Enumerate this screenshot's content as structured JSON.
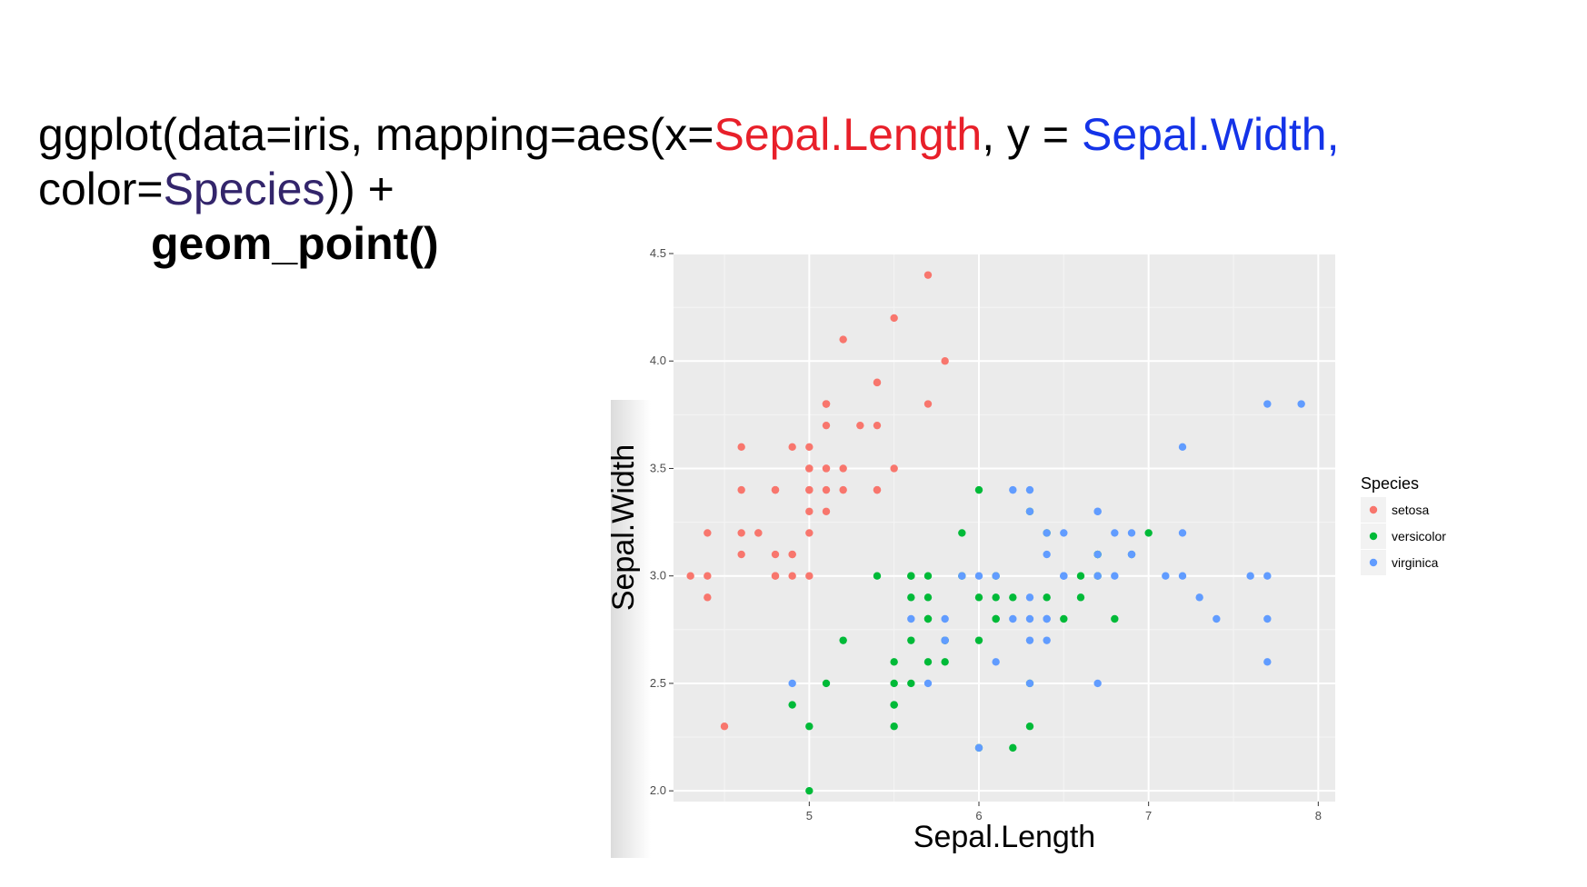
{
  "code": {
    "line1": [
      {
        "text": "ggplot(data=iris, mapping=aes(x=",
        "color": "#000000"
      },
      {
        "text": "Sepal.Length",
        "color": "#e8202a"
      },
      {
        "text": ", y = ",
        "color": "#000000"
      },
      {
        "text": "Sepal.Width,",
        "color": "#1433e8"
      }
    ],
    "line2": [
      {
        "text": "color=",
        "color": "#000000"
      },
      {
        "text": "Species",
        "color": "#33256b"
      },
      {
        "text": ")) +",
        "color": "#000000"
      }
    ],
    "line3": "geom_point()"
  },
  "chart_data": {
    "type": "scatter",
    "xlabel": "Sepal.Length",
    "ylabel": "Sepal.Width",
    "xlim": [
      4.2,
      8.1
    ],
    "ylim": [
      1.95,
      4.5
    ],
    "xticks": [
      5,
      6,
      7,
      8
    ],
    "xtick_labels": [
      "5",
      "6",
      "7",
      "8"
    ],
    "yticks": [
      2.0,
      2.5,
      3.0,
      3.5,
      4.0,
      4.5
    ],
    "ytick_labels": [
      "2.0",
      "2.5",
      "3.0",
      "3.5",
      "4.0",
      "4.5"
    ],
    "grid": true,
    "panel_background": "#ebebeb",
    "legend": {
      "title": "Species",
      "position": "right"
    },
    "series": [
      {
        "name": "setosa",
        "color": "#f8766d",
        "points": [
          [
            5.1,
            3.5
          ],
          [
            4.9,
            3.0
          ],
          [
            4.7,
            3.2
          ],
          [
            4.6,
            3.1
          ],
          [
            5.0,
            3.6
          ],
          [
            5.4,
            3.9
          ],
          [
            4.6,
            3.4
          ],
          [
            5.0,
            3.4
          ],
          [
            4.4,
            2.9
          ],
          [
            4.9,
            3.1
          ],
          [
            5.4,
            3.7
          ],
          [
            4.8,
            3.4
          ],
          [
            4.8,
            3.0
          ],
          [
            4.3,
            3.0
          ],
          [
            5.8,
            4.0
          ],
          [
            5.7,
            4.4
          ],
          [
            5.4,
            3.9
          ],
          [
            5.1,
            3.5
          ],
          [
            5.7,
            3.8
          ],
          [
            5.1,
            3.8
          ],
          [
            5.4,
            3.4
          ],
          [
            5.1,
            3.7
          ],
          [
            4.6,
            3.6
          ],
          [
            5.1,
            3.3
          ],
          [
            4.8,
            3.4
          ],
          [
            5.0,
            3.0
          ],
          [
            5.0,
            3.4
          ],
          [
            5.2,
            3.5
          ],
          [
            5.2,
            3.4
          ],
          [
            4.7,
            3.2
          ],
          [
            4.8,
            3.1
          ],
          [
            5.4,
            3.4
          ],
          [
            5.2,
            4.1
          ],
          [
            5.5,
            4.2
          ],
          [
            4.9,
            3.1
          ],
          [
            5.0,
            3.2
          ],
          [
            5.5,
            3.5
          ],
          [
            4.9,
            3.6
          ],
          [
            4.4,
            3.0
          ],
          [
            5.1,
            3.4
          ],
          [
            5.0,
            3.5
          ],
          [
            4.5,
            2.3
          ],
          [
            4.4,
            3.2
          ],
          [
            5.0,
            3.5
          ],
          [
            5.1,
            3.8
          ],
          [
            4.8,
            3.0
          ],
          [
            5.1,
            3.8
          ],
          [
            4.6,
            3.2
          ],
          [
            5.3,
            3.7
          ],
          [
            5.0,
            3.3
          ]
        ]
      },
      {
        "name": "versicolor",
        "color": "#00ba38",
        "points": [
          [
            7.0,
            3.2
          ],
          [
            6.4,
            3.2
          ],
          [
            6.9,
            3.1
          ],
          [
            5.5,
            2.3
          ],
          [
            6.5,
            2.8
          ],
          [
            5.7,
            2.8
          ],
          [
            6.3,
            3.3
          ],
          [
            4.9,
            2.4
          ],
          [
            6.6,
            2.9
          ],
          [
            5.2,
            2.7
          ],
          [
            5.0,
            2.0
          ],
          [
            5.9,
            3.0
          ],
          [
            6.0,
            2.2
          ],
          [
            6.1,
            2.9
          ],
          [
            5.6,
            2.9
          ],
          [
            6.7,
            3.1
          ],
          [
            5.6,
            3.0
          ],
          [
            5.8,
            2.7
          ],
          [
            6.2,
            2.2
          ],
          [
            5.6,
            2.5
          ],
          [
            5.9,
            3.2
          ],
          [
            6.1,
            2.8
          ],
          [
            6.3,
            2.5
          ],
          [
            6.1,
            2.8
          ],
          [
            6.4,
            2.9
          ],
          [
            6.6,
            3.0
          ],
          [
            6.8,
            2.8
          ],
          [
            6.7,
            3.0
          ],
          [
            6.0,
            2.9
          ],
          [
            5.7,
            2.6
          ],
          [
            5.5,
            2.4
          ],
          [
            5.5,
            2.4
          ],
          [
            5.8,
            2.7
          ],
          [
            6.0,
            2.7
          ],
          [
            5.4,
            3.0
          ],
          [
            6.0,
            3.4
          ],
          [
            6.7,
            3.1
          ],
          [
            6.3,
            2.3
          ],
          [
            5.6,
            3.0
          ],
          [
            5.5,
            2.5
          ],
          [
            5.5,
            2.6
          ],
          [
            6.1,
            3.0
          ],
          [
            5.8,
            2.6
          ],
          [
            5.0,
            2.3
          ],
          [
            5.6,
            2.7
          ],
          [
            5.7,
            3.0
          ],
          [
            5.7,
            2.9
          ],
          [
            6.2,
            2.9
          ],
          [
            5.1,
            2.5
          ],
          [
            5.7,
            2.8
          ]
        ]
      },
      {
        "name": "virginica",
        "color": "#619cff",
        "points": [
          [
            6.3,
            3.3
          ],
          [
            5.8,
            2.7
          ],
          [
            7.1,
            3.0
          ],
          [
            6.3,
            2.9
          ],
          [
            6.5,
            3.0
          ],
          [
            7.6,
            3.0
          ],
          [
            4.9,
            2.5
          ],
          [
            7.3,
            2.9
          ],
          [
            6.7,
            2.5
          ],
          [
            7.2,
            3.6
          ],
          [
            6.5,
            3.2
          ],
          [
            6.4,
            2.7
          ],
          [
            6.8,
            3.0
          ],
          [
            5.7,
            2.5
          ],
          [
            5.8,
            2.8
          ],
          [
            6.4,
            3.2
          ],
          [
            6.5,
            3.0
          ],
          [
            7.7,
            3.8
          ],
          [
            7.7,
            2.6
          ],
          [
            6.0,
            2.2
          ],
          [
            6.9,
            3.2
          ],
          [
            5.6,
            2.8
          ],
          [
            7.7,
            2.8
          ],
          [
            6.3,
            2.7
          ],
          [
            6.7,
            3.3
          ],
          [
            7.2,
            3.2
          ],
          [
            6.2,
            2.8
          ],
          [
            6.1,
            3.0
          ],
          [
            6.4,
            2.8
          ],
          [
            7.2,
            3.0
          ],
          [
            7.4,
            2.8
          ],
          [
            7.9,
            3.8
          ],
          [
            6.4,
            2.8
          ],
          [
            6.3,
            2.8
          ],
          [
            6.1,
            2.6
          ],
          [
            7.7,
            3.0
          ],
          [
            6.3,
            3.4
          ],
          [
            6.4,
            3.1
          ],
          [
            6.0,
            3.0
          ],
          [
            6.9,
            3.1
          ],
          [
            6.7,
            3.1
          ],
          [
            6.9,
            3.1
          ],
          [
            5.8,
            2.7
          ],
          [
            6.8,
            3.2
          ],
          [
            6.7,
            3.3
          ],
          [
            6.7,
            3.0
          ],
          [
            6.3,
            2.5
          ],
          [
            6.5,
            3.0
          ],
          [
            6.2,
            3.4
          ],
          [
            5.9,
            3.0
          ]
        ]
      }
    ]
  }
}
